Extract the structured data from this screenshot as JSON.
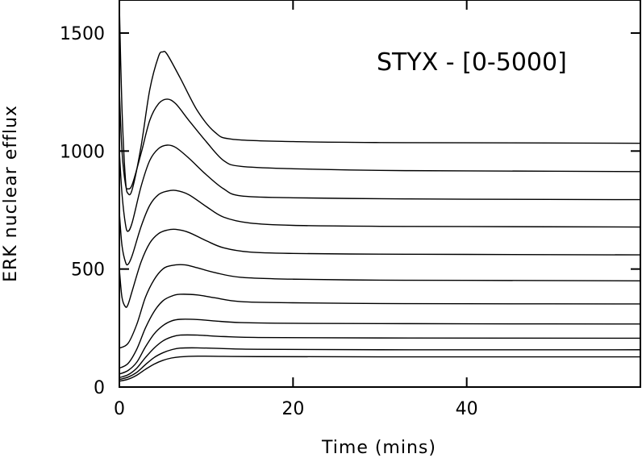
{
  "chart_data": {
    "type": "line",
    "title": "",
    "xlabel": "Time (mins)",
    "ylabel": "ERK nuclear efflux",
    "annotation": "STYX - [0-5000]",
    "xlim": [
      0,
      60
    ],
    "ylim": [
      0,
      1640
    ],
    "xticks": [
      0,
      20,
      40
    ],
    "yticks": [
      0,
      500,
      1000,
      1500
    ],
    "grid": false,
    "legend": "none",
    "series": [
      {
        "points": [
          [
            0,
            1620
          ],
          [
            0.3,
            1180
          ],
          [
            0.7,
            880
          ],
          [
            1,
            820
          ],
          [
            1.5,
            840
          ],
          [
            2.5,
            1020
          ],
          [
            3.5,
            1260
          ],
          [
            4.5,
            1400
          ],
          [
            5,
            1420
          ],
          [
            5.5,
            1410
          ],
          [
            7,
            1310
          ],
          [
            9,
            1170
          ],
          [
            11,
            1080
          ],
          [
            13,
            1050
          ],
          [
            20,
            1040
          ],
          [
            30,
            1036
          ],
          [
            40,
            1035
          ],
          [
            60,
            1033
          ]
        ]
      },
      {
        "points": [
          [
            0,
            1260
          ],
          [
            0.3,
            1000
          ],
          [
            0.7,
            860
          ],
          [
            1,
            840
          ],
          [
            1.5,
            860
          ],
          [
            2.5,
            990
          ],
          [
            3.5,
            1130
          ],
          [
            4.5,
            1200
          ],
          [
            5.5,
            1220
          ],
          [
            6.5,
            1200
          ],
          [
            8,
            1130
          ],
          [
            10,
            1040
          ],
          [
            12,
            960
          ],
          [
            14,
            935
          ],
          [
            20,
            925
          ],
          [
            30,
            918
          ],
          [
            40,
            916
          ],
          [
            60,
            913
          ]
        ]
      },
      {
        "points": [
          [
            0,
            1000
          ],
          [
            0.3,
            820
          ],
          [
            0.7,
            690
          ],
          [
            1,
            660
          ],
          [
            1.5,
            700
          ],
          [
            2.5,
            850
          ],
          [
            3.5,
            960
          ],
          [
            4.5,
            1010
          ],
          [
            5.5,
            1025
          ],
          [
            6.5,
            1015
          ],
          [
            8,
            970
          ],
          [
            10,
            900
          ],
          [
            12,
            840
          ],
          [
            14,
            810
          ],
          [
            20,
            802
          ],
          [
            30,
            798
          ],
          [
            40,
            796
          ],
          [
            60,
            794
          ]
        ]
      },
      {
        "points": [
          [
            0,
            740
          ],
          [
            0.3,
            600
          ],
          [
            0.7,
            530
          ],
          [
            1,
            520
          ],
          [
            1.5,
            560
          ],
          [
            2.5,
            680
          ],
          [
            3.5,
            770
          ],
          [
            4.5,
            815
          ],
          [
            5.5,
            830
          ],
          [
            6.5,
            833
          ],
          [
            8,
            815
          ],
          [
            10,
            765
          ],
          [
            12,
            720
          ],
          [
            15,
            695
          ],
          [
            20,
            685
          ],
          [
            30,
            681
          ],
          [
            40,
            680
          ],
          [
            60,
            678
          ]
        ]
      },
      {
        "points": [
          [
            0,
            500
          ],
          [
            0.3,
            380
          ],
          [
            0.7,
            340
          ],
          [
            1,
            350
          ],
          [
            1.5,
            410
          ],
          [
            2.5,
            530
          ],
          [
            3.5,
            610
          ],
          [
            4.5,
            650
          ],
          [
            5.5,
            665
          ],
          [
            6.5,
            668
          ],
          [
            8,
            655
          ],
          [
            10,
            620
          ],
          [
            12,
            590
          ],
          [
            15,
            572
          ],
          [
            20,
            566
          ],
          [
            30,
            563
          ],
          [
            40,
            562
          ],
          [
            60,
            560
          ]
        ]
      },
      {
        "points": [
          [
            0,
            165
          ],
          [
            1,
            185
          ],
          [
            2,
            265
          ],
          [
            3,
            380
          ],
          [
            4,
            455
          ],
          [
            5,
            500
          ],
          [
            6,
            515
          ],
          [
            7.5,
            518
          ],
          [
            9,
            505
          ],
          [
            11,
            485
          ],
          [
            14,
            465
          ],
          [
            20,
            457
          ],
          [
            30,
            453
          ],
          [
            40,
            452
          ],
          [
            60,
            450
          ]
        ]
      },
      {
        "points": [
          [
            0,
            80
          ],
          [
            1,
            100
          ],
          [
            2,
            160
          ],
          [
            3,
            250
          ],
          [
            4,
            320
          ],
          [
            5,
            365
          ],
          [
            6,
            385
          ],
          [
            7,
            393
          ],
          [
            9,
            390
          ],
          [
            11,
            378
          ],
          [
            14,
            362
          ],
          [
            20,
            357
          ],
          [
            30,
            354
          ],
          [
            40,
            353
          ],
          [
            60,
            352
          ]
        ]
      },
      {
        "points": [
          [
            0,
            55
          ],
          [
            1,
            70
          ],
          [
            2,
            105
          ],
          [
            3,
            170
          ],
          [
            4,
            225
          ],
          [
            5,
            260
          ],
          [
            6,
            280
          ],
          [
            7,
            287
          ],
          [
            9,
            286
          ],
          [
            11,
            280
          ],
          [
            14,
            273
          ],
          [
            20,
            270
          ],
          [
            30,
            269
          ],
          [
            40,
            268
          ],
          [
            60,
            267
          ]
        ]
      },
      {
        "points": [
          [
            0,
            40
          ],
          [
            1,
            52
          ],
          [
            2,
            80
          ],
          [
            3,
            125
          ],
          [
            4,
            165
          ],
          [
            5,
            195
          ],
          [
            6,
            212
          ],
          [
            7,
            220
          ],
          [
            9,
            220
          ],
          [
            12,
            214
          ],
          [
            16,
            210
          ],
          [
            30,
            208
          ],
          [
            60,
            207
          ]
        ]
      },
      {
        "points": [
          [
            0,
            32
          ],
          [
            1,
            42
          ],
          [
            2,
            62
          ],
          [
            3,
            95
          ],
          [
            4,
            125
          ],
          [
            5,
            145
          ],
          [
            6,
            158
          ],
          [
            7,
            165
          ],
          [
            9,
            166
          ],
          [
            12,
            163
          ],
          [
            16,
            160
          ],
          [
            30,
            158
          ],
          [
            60,
            158
          ]
        ]
      },
      {
        "points": [
          [
            0,
            25
          ],
          [
            1,
            33
          ],
          [
            2,
            50
          ],
          [
            3,
            75
          ],
          [
            4,
            97
          ],
          [
            5,
            113
          ],
          [
            6,
            123
          ],
          [
            7,
            128
          ],
          [
            9,
            131
          ],
          [
            12,
            130
          ],
          [
            16,
            129
          ],
          [
            30,
            128
          ],
          [
            60,
            128
          ]
        ]
      }
    ]
  }
}
